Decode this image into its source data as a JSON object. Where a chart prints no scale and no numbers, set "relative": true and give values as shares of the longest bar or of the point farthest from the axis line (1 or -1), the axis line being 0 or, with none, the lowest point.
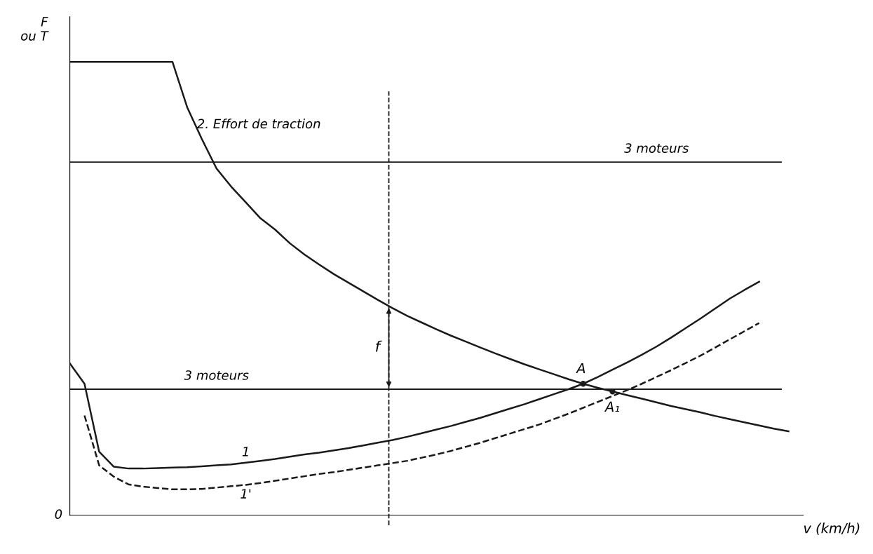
{
  "chart_data": {
    "type": "line",
    "relative": true,
    "ylabel": "F\nou T",
    "xlabel": "v (km/h)",
    "categories": [
      null,
      null,
      null,
      null,
      null,
      null,
      null,
      null,
      null,
      null,
      null,
      null,
      null,
      null,
      null,
      null,
      null,
      null,
      null,
      null,
      null,
      null,
      null,
      null,
      null,
      null,
      null,
      null,
      null,
      null,
      null,
      null,
      null,
      null,
      null,
      null,
      null,
      null,
      null,
      null,
      null,
      null,
      null,
      null,
      null,
      null,
      null,
      null,
      null,
      null,
      null
    ],
    "series": [
      {
        "name": "2. Effort de traction",
        "color": "#1a1a1a",
        "line_style": "solid",
        "values": [
          1,
          1,
          1,
          1,
          1,
          1,
          1,
          1,
          0.9,
          0.83,
          0.765,
          0.725,
          0.69,
          0.655,
          0.63,
          0.6,
          0.575,
          0.553,
          0.532,
          0.513,
          0.494,
          0.475,
          0.457,
          0.44,
          0.425,
          0.41,
          0.396,
          0.383,
          0.37,
          0.357,
          0.345,
          0.333,
          0.322,
          0.311,
          0.3,
          0.29,
          0.281,
          0.273,
          0.265,
          0.257,
          0.249,
          0.241,
          0.234,
          0.227,
          0.219,
          0.212,
          0.205,
          0.198,
          0.191,
          0.185,
          null
        ]
      },
      {
        "name": "1",
        "color": "#1a1a1a",
        "line_style": "solid",
        "values": [
          0.335,
          0.29,
          0.14,
          0.107,
          0.103,
          0.103,
          0.104,
          0.105,
          0.106,
          0.108,
          0.11,
          0.112,
          0.116,
          0.12,
          0.124,
          0.129,
          0.134,
          0.138,
          0.143,
          0.148,
          0.154,
          0.16,
          0.166,
          0.173,
          0.181,
          0.189,
          0.197,
          0.206,
          0.215,
          0.225,
          0.235,
          0.245,
          0.256,
          0.267,
          0.278,
          0.29,
          0.305,
          0.321,
          0.337,
          0.354,
          0.372,
          0.392,
          0.413,
          0.434,
          0.456,
          0.478,
          0.497,
          0.515,
          null,
          null,
          null
        ]
      },
      {
        "name": "1'",
        "color": "#1a1a1a",
        "line_style": "dashed",
        "values": [
          null,
          0.22,
          0.11,
          0.085,
          0.068,
          0.063,
          0.06,
          0.057,
          0.057,
          0.058,
          0.061,
          0.064,
          0.067,
          0.071,
          0.076,
          0.081,
          0.086,
          0.091,
          0.095,
          0.1,
          0.105,
          0.11,
          0.115,
          0.12,
          0.127,
          0.134,
          0.142,
          0.151,
          0.16,
          0.17,
          0.18,
          0.19,
          0.2,
          0.212,
          0.224,
          0.237,
          0.25,
          0.263,
          0.276,
          0.29,
          0.305,
          0.32,
          0.336,
          0.352,
          0.37,
          0.388,
          0.406,
          0.424,
          null,
          null,
          null
        ]
      }
    ],
    "ref_lines": [
      {
        "axis": "y",
        "value": 0.779,
        "label": "3 moteurs",
        "color": "#1a1a1a"
      },
      {
        "axis": "y",
        "value": 0.278,
        "label": "3 moteurs",
        "color": "#1a1a1a"
      }
    ],
    "annotations": [
      "f",
      "A",
      "A₁",
      "0"
    ]
  }
}
